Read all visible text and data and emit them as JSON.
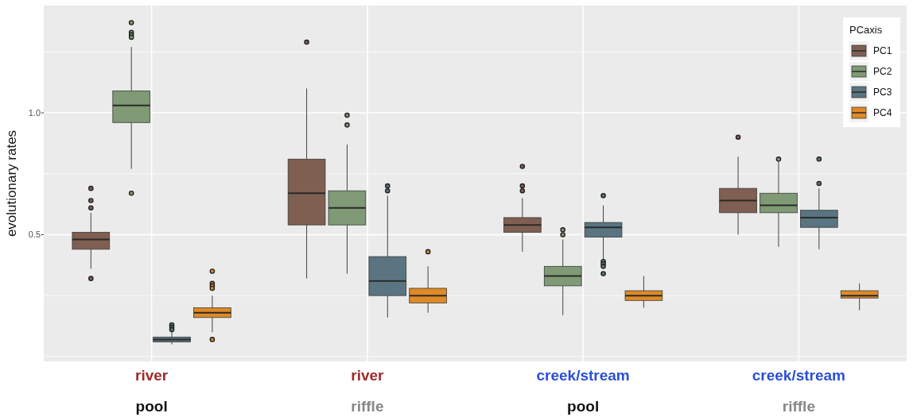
{
  "chart_data": {
    "type": "box",
    "ylabel": "evolutionary rates",
    "legend_title": "PCaxis",
    "legend": "top right",
    "grid": true,
    "categories": [
      "river\npool",
      "river\nriffle",
      "creek/stream\npool",
      "creek/stream\nriffle"
    ],
    "ylim": [
      -0.02,
      1.44
    ],
    "yticks": [
      {
        "value": 0,
        "label": null
      },
      {
        "value": 0.25,
        "label": null
      },
      0.5,
      {
        "value": 0.75,
        "label": null
      },
      {
        "value": 1,
        "label": "1.0"
      },
      {
        "value": 1.25,
        "label": null
      }
    ],
    "series": [
      {
        "name": "PC1",
        "color": "#7f5f51",
        "boxes": [
          {
            "low": 0.36,
            "q1": 0.44,
            "median": 0.48,
            "q3": 0.51,
            "high": 0.59,
            "outliers": [
              0.69,
              0.64,
              0.61,
              0.32
            ]
          },
          {
            "low": 0.32,
            "q1": 0.54,
            "median": 0.67,
            "q3": 0.81,
            "high": 1.1,
            "outliers": [
              1.29
            ]
          },
          {
            "low": 0.43,
            "q1": 0.51,
            "median": 0.54,
            "q3": 0.57,
            "high": 0.65,
            "outliers": [
              0.78,
              0.7,
              0.68
            ]
          },
          {
            "low": 0.5,
            "q1": 0.59,
            "median": 0.64,
            "q3": 0.69,
            "high": 0.82,
            "outliers": [
              0.9
            ]
          }
        ]
      },
      {
        "name": "PC2",
        "color": "#7f9a74",
        "boxes": [
          {
            "low": 0.77,
            "q1": 0.96,
            "median": 1.03,
            "q3": 1.09,
            "high": 1.27,
            "outliers": [
              1.37,
              1.33,
              1.32,
              1.31,
              0.67
            ]
          },
          {
            "low": 0.34,
            "q1": 0.54,
            "median": 0.61,
            "q3": 0.68,
            "high": 0.87,
            "outliers": [
              0.99,
              0.95
            ]
          },
          {
            "low": 0.17,
            "q1": 0.29,
            "median": 0.33,
            "q3": 0.37,
            "high": 0.48,
            "outliers": [
              0.52,
              0.5
            ]
          },
          {
            "low": 0.45,
            "q1": 0.59,
            "median": 0.62,
            "q3": 0.67,
            "high": 0.8,
            "outliers": [
              0.81
            ]
          }
        ]
      },
      {
        "name": "PC3",
        "color": "#5a7481",
        "boxes": [
          {
            "low": 0.05,
            "q1": 0.06,
            "median": 0.07,
            "q3": 0.08,
            "high": 0.1,
            "outliers": [
              0.13,
              0.12,
              0.11
            ]
          },
          {
            "low": 0.16,
            "q1": 0.25,
            "median": 0.31,
            "q3": 0.41,
            "high": 0.66,
            "outliers": [
              0.7,
              0.68
            ]
          },
          {
            "low": 0.4,
            "q1": 0.49,
            "median": 0.53,
            "q3": 0.55,
            "high": 0.62,
            "outliers": [
              0.66,
              0.39,
              0.38,
              0.37,
              0.34
            ]
          },
          {
            "low": 0.44,
            "q1": 0.53,
            "median": 0.57,
            "q3": 0.6,
            "high": 0.69,
            "outliers": [
              0.81,
              0.71
            ]
          }
        ]
      },
      {
        "name": "PC4",
        "color": "#df8a26",
        "boxes": [
          {
            "low": 0.1,
            "q1": 0.16,
            "median": 0.18,
            "q3": 0.2,
            "high": 0.25,
            "outliers": [
              0.35,
              0.3,
              0.29,
              0.28,
              0.07
            ]
          },
          {
            "low": 0.18,
            "q1": 0.22,
            "median": 0.25,
            "q3": 0.28,
            "high": 0.37,
            "outliers": [
              0.43
            ]
          },
          {
            "low": 0.2,
            "q1": 0.23,
            "median": 0.25,
            "q3": 0.27,
            "high": 0.33
          },
          {
            "low": 0.19,
            "q1": 0.24,
            "median": 0.25,
            "q3": 0.27,
            "high": 0.3
          }
        ]
      }
    ]
  }
}
